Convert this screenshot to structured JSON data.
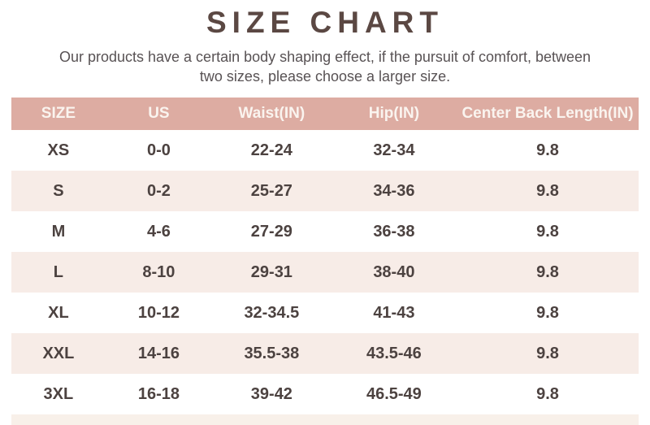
{
  "page": {
    "title": "SIZE CHART",
    "subtitle_line1": "Our products have a certain body shaping effect, if the pursuit of comfort, between",
    "subtitle_line2": "two sizes, please choose a larger size."
  },
  "colors": {
    "header_bg": "#ddaca2",
    "header_text": "#faf4ef",
    "alt_row_bg": "#f7ece7",
    "partial_row_bg": "#f8f0e9",
    "title_text": "#5b4843",
    "cell_text": "#4c4240",
    "subtitle_text": "#585254"
  },
  "chart_data": {
    "type": "table",
    "title": "SIZE CHART",
    "columns": [
      "SIZE",
      "US",
      "Waist(IN)",
      "Hip(IN)",
      "Center Back Length(IN)"
    ],
    "rows": [
      [
        "XS",
        "0-0",
        "22-24",
        "32-34",
        "9.8"
      ],
      [
        "S",
        "0-2",
        "25-27",
        "34-36",
        "9.8"
      ],
      [
        "M",
        "4-6",
        "27-29",
        "36-38",
        "9.8"
      ],
      [
        "L",
        "8-10",
        "29-31",
        "38-40",
        "9.8"
      ],
      [
        "XL",
        "10-12",
        "32-34.5",
        "41-43",
        "9.8"
      ],
      [
        "XXL",
        "14-16",
        "35.5-38",
        "43.5-46",
        "9.8"
      ],
      [
        "3XL",
        "16-18",
        "39-42",
        "46.5-49",
        "9.8"
      ]
    ],
    "layout_hints": {
      "header_style": "solid rose band, white text",
      "row_striping": "white / light pink alternating starting white",
      "last_row_partial": true
    }
  }
}
